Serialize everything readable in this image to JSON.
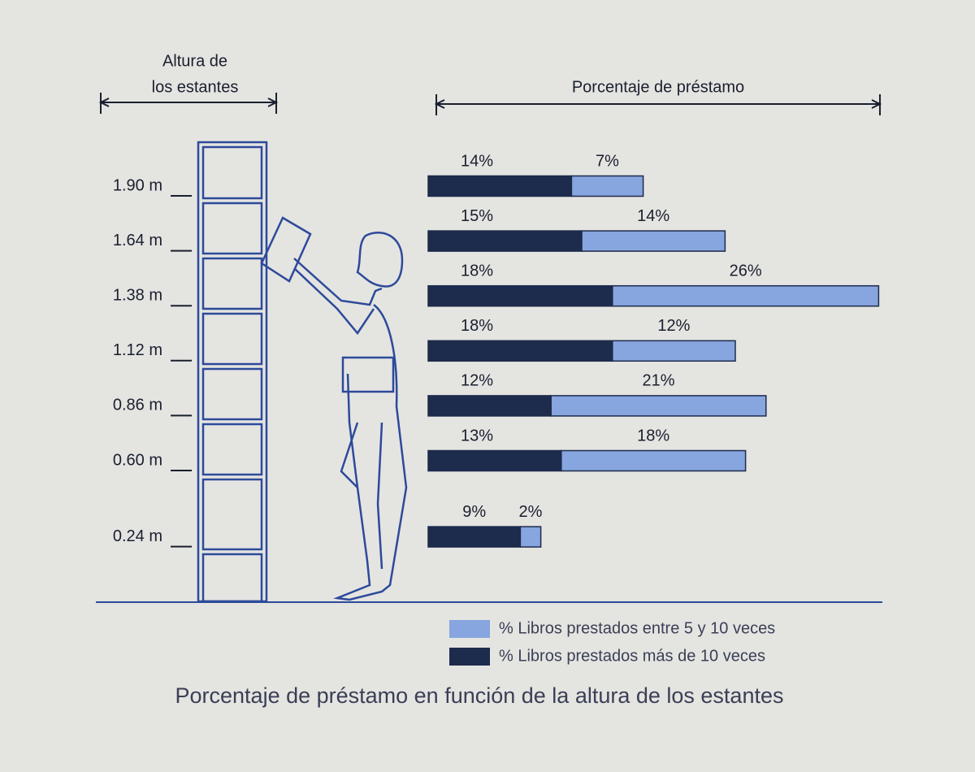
{
  "chart_data": {
    "type": "bar",
    "orientation": "horizontal",
    "stacked": true,
    "title": "Porcentaje de préstamo en función de la altura de los estantes",
    "category_axis_label": [
      "Altura de",
      "los estantes"
    ],
    "value_axis_label": "Porcentaje de préstamo",
    "categories": [
      {
        "value": 1.9,
        "label": "1.90 m"
      },
      {
        "value": 1.64,
        "label": "1.64 m"
      },
      {
        "value": 1.38,
        "label": "1.38 m"
      },
      {
        "value": 1.12,
        "label": "1.12 m"
      },
      {
        "value": 0.86,
        "label": "0.86 m"
      },
      {
        "value": 0.6,
        "label": "0.60 m"
      },
      {
        "value": 0.24,
        "label": "0.24 m"
      }
    ],
    "series": [
      {
        "name": "% Libros prestados más de 10 veces",
        "color": "#1d2b4c",
        "values": [
          14,
          15,
          18,
          18,
          12,
          13,
          9
        ],
        "value_labels": [
          "14%",
          "15%",
          "18%",
          "18%",
          "12%",
          "13%",
          "9%"
        ]
      },
      {
        "name": "% Libros prestados entre 5 y 10 veces",
        "color": "#87a5de",
        "values": [
          7,
          14,
          26,
          12,
          21,
          18,
          2
        ],
        "value_labels": [
          "7%",
          "14%",
          "26%",
          "12%",
          "21%",
          "18%",
          "2%"
        ]
      }
    ],
    "legend": "bottom-right"
  }
}
